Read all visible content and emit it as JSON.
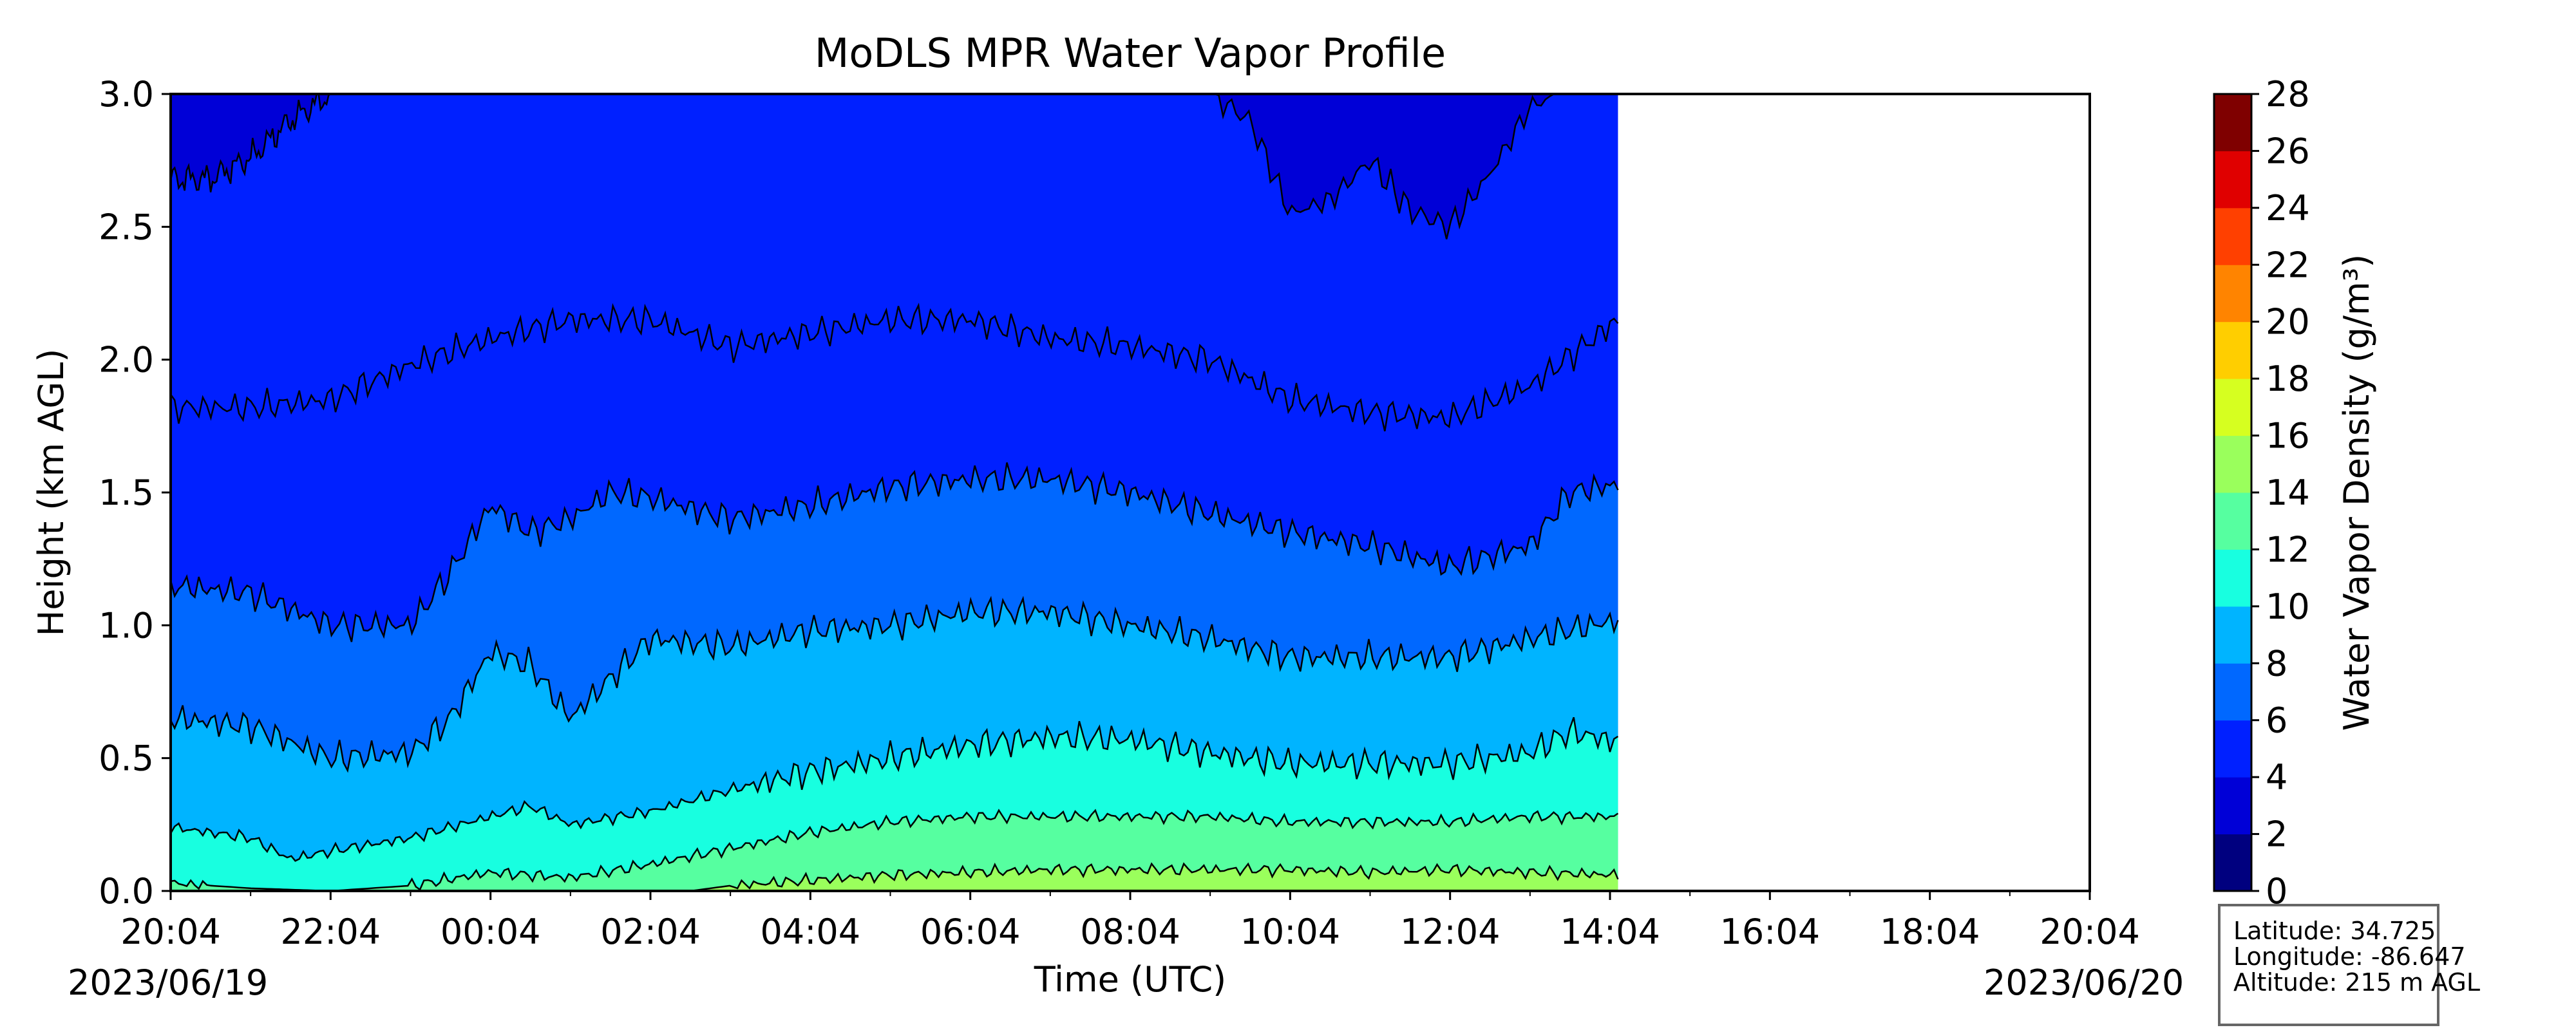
{
  "chart_data": {
    "type": "heatmap",
    "subtype": "filled-contour",
    "title": "MoDLS MPR Water Vapor Profile",
    "xlabel": "Time (UTC)",
    "ylabel": "Height (km AGL)",
    "ylim": [
      0,
      3.0
    ],
    "y_ticks": [
      "0.0",
      "0.5",
      "1.0",
      "1.5",
      "2.0",
      "2.5",
      "3.0"
    ],
    "x_ticks": [
      "20:04",
      "22:04",
      "00:04",
      "02:04",
      "04:04",
      "06:04",
      "08:04",
      "10:04",
      "12:04",
      "14:04",
      "16:04",
      "18:04",
      "20:04"
    ],
    "x_range_hours": [
      0,
      24
    ],
    "data_end_hour": 18.1,
    "start_date": "2023/06/19",
    "end_date": "2023/06/20",
    "grid": false,
    "colorbar": {
      "label": "Water Vapor Density (g/m³)",
      "levels": [
        0,
        2,
        4,
        6,
        8,
        10,
        12,
        14,
        16,
        18,
        20,
        22,
        24,
        26,
        28
      ],
      "tick_labels": [
        "0",
        "2",
        "4",
        "6",
        "8",
        "10",
        "12",
        "14",
        "16",
        "18",
        "20",
        "22",
        "24",
        "26",
        "28"
      ],
      "colors": [
        "#00007f",
        "#0000d7",
        "#0020ff",
        "#0068ff",
        "#00b4ff",
        "#18ffe0",
        "#56ffa0",
        "#9aff5c",
        "#d6ff20",
        "#ffce00",
        "#ff8400",
        "#ff4000",
        "#e00000",
        "#7f0000"
      ]
    },
    "contours": [
      {
        "level": 2,
        "height_km": [
          [
            0,
            2.68
          ],
          [
            0.5,
            2.68
          ],
          [
            1,
            2.76
          ],
          [
            1.5,
            2.9
          ],
          [
            2,
            3.0
          ]
        ],
        "height_km_segment2": [
          [
            13.0,
            3.0
          ],
          [
            13.5,
            2.9
          ],
          [
            14.0,
            2.55
          ],
          [
            14.5,
            2.6
          ],
          [
            15.0,
            2.75
          ],
          [
            15.5,
            2.56
          ],
          [
            16.0,
            2.5
          ],
          [
            16.5,
            2.7
          ],
          [
            17.0,
            2.95
          ],
          [
            17.3,
            3.0
          ]
        ]
      },
      {
        "level": 4,
        "height_km": [
          [
            0,
            1.82
          ],
          [
            1,
            1.82
          ],
          [
            2,
            1.85
          ],
          [
            3,
            1.98
          ],
          [
            4,
            2.08
          ],
          [
            5,
            2.15
          ],
          [
            6,
            2.15
          ],
          [
            7,
            2.05
          ],
          [
            8,
            2.1
          ],
          [
            9,
            2.15
          ],
          [
            10,
            2.15
          ],
          [
            11,
            2.08
          ],
          [
            12,
            2.05
          ],
          [
            13,
            2.0
          ],
          [
            14,
            1.85
          ],
          [
            15,
            1.8
          ],
          [
            16,
            1.78
          ],
          [
            17,
            1.9
          ],
          [
            18.1,
            2.15
          ]
        ]
      },
      {
        "level": 6,
        "height_km": [
          [
            0,
            1.15
          ],
          [
            1,
            1.12
          ],
          [
            2,
            1.0
          ],
          [
            3,
            1.0
          ],
          [
            3.5,
            1.2
          ],
          [
            4,
            1.45
          ],
          [
            4.5,
            1.35
          ],
          [
            5,
            1.4
          ],
          [
            5.5,
            1.5
          ],
          [
            6,
            1.48
          ],
          [
            7,
            1.4
          ],
          [
            8,
            1.45
          ],
          [
            9,
            1.52
          ],
          [
            10,
            1.55
          ],
          [
            11,
            1.55
          ],
          [
            12,
            1.5
          ],
          [
            13,
            1.42
          ],
          [
            14,
            1.35
          ],
          [
            15,
            1.3
          ],
          [
            16,
            1.22
          ],
          [
            17,
            1.3
          ],
          [
            17.5,
            1.5
          ],
          [
            18.1,
            1.53
          ]
        ]
      },
      {
        "level": 8,
        "height_km": [
          [
            0,
            0.65
          ],
          [
            1,
            0.62
          ],
          [
            2,
            0.5
          ],
          [
            3,
            0.52
          ],
          [
            3.5,
            0.65
          ],
          [
            4,
            0.9
          ],
          [
            4.5,
            0.85
          ],
          [
            5,
            0.65
          ],
          [
            5.5,
            0.8
          ],
          [
            6,
            0.95
          ],
          [
            7,
            0.92
          ],
          [
            8,
            0.98
          ],
          [
            9,
            1.0
          ],
          [
            10,
            1.05
          ],
          [
            11,
            1.05
          ],
          [
            12,
            1.0
          ],
          [
            13,
            0.95
          ],
          [
            14,
            0.88
          ],
          [
            15,
            0.88
          ],
          [
            16,
            0.88
          ],
          [
            17,
            0.95
          ],
          [
            18.1,
            1.02
          ]
        ]
      },
      {
        "level": 10,
        "height_km": [
          [
            0,
            0.24
          ],
          [
            1,
            0.2
          ],
          [
            1.5,
            0.12
          ],
          [
            2,
            0.15
          ],
          [
            3,
            0.2
          ],
          [
            4,
            0.28
          ],
          [
            4.5,
            0.32
          ],
          [
            5,
            0.25
          ],
          [
            6,
            0.3
          ],
          [
            7,
            0.38
          ],
          [
            8,
            0.45
          ],
          [
            9,
            0.5
          ],
          [
            10,
            0.55
          ],
          [
            11,
            0.58
          ],
          [
            12,
            0.57
          ],
          [
            13,
            0.52
          ],
          [
            14,
            0.48
          ],
          [
            15,
            0.48
          ],
          [
            16,
            0.48
          ],
          [
            17,
            0.52
          ],
          [
            17.5,
            0.6
          ],
          [
            18.1,
            0.56
          ]
        ]
      },
      {
        "level": 12,
        "height_km": [
          [
            0,
            0.03
          ],
          [
            1,
            0.01
          ],
          [
            2,
            0.0
          ],
          [
            3,
            0.02
          ],
          [
            4,
            0.07
          ],
          [
            5,
            0.05
          ],
          [
            6,
            0.1
          ],
          [
            7,
            0.16
          ],
          [
            8,
            0.22
          ],
          [
            9,
            0.26
          ],
          [
            10,
            0.28
          ],
          [
            11,
            0.28
          ],
          [
            12,
            0.28
          ],
          [
            13,
            0.28
          ],
          [
            14,
            0.26
          ],
          [
            15,
            0.26
          ],
          [
            16,
            0.26
          ],
          [
            17,
            0.28
          ],
          [
            18.1,
            0.28
          ]
        ]
      },
      {
        "level": 14,
        "height_km": [
          [
            6.5,
            0.0
          ],
          [
            7,
            0.02
          ],
          [
            8,
            0.04
          ],
          [
            9,
            0.06
          ],
          [
            10,
            0.07
          ],
          [
            11,
            0.08
          ],
          [
            12,
            0.08
          ],
          [
            13,
            0.08
          ],
          [
            14,
            0.08
          ],
          [
            15,
            0.07
          ],
          [
            16,
            0.08
          ],
          [
            17,
            0.07
          ],
          [
            18.1,
            0.06
          ]
        ]
      }
    ],
    "info": {
      "latitude": "Latitude: 34.725",
      "longitude": "Longitude: -86.647",
      "altitude": "Altitude: 215 m AGL"
    }
  }
}
